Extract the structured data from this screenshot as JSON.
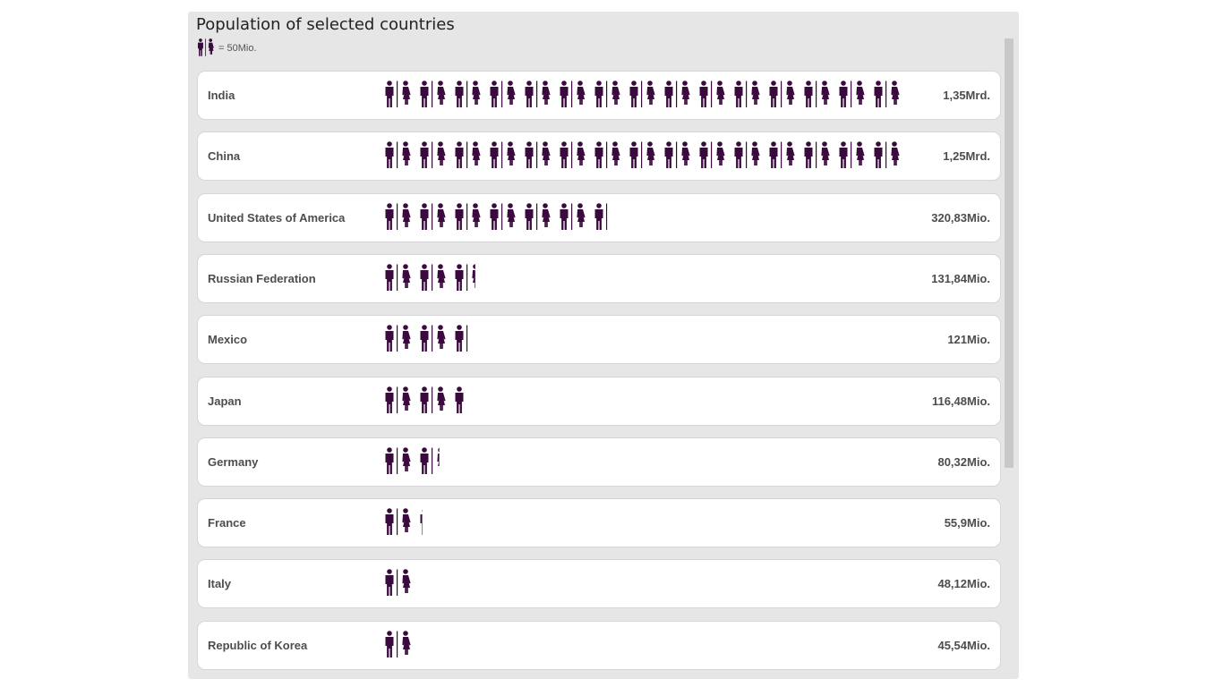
{
  "header": {
    "title": "Population of selected countries",
    "legend_text": "= 50Mio."
  },
  "colors": {
    "icon": "#3a0a3e",
    "panel_bg": "#e6e6e6",
    "row_bg": "#ffffff",
    "text": "#4d4d4d"
  },
  "chart_data": {
    "type": "pictogram",
    "title": "Population of selected countries",
    "unit_per_icon_pair": 50,
    "unit_label": "Mio.",
    "rows": [
      {
        "country": "India",
        "value": 1350,
        "label": "1,35Mrd."
      },
      {
        "country": "China",
        "value": 1250,
        "label": "1,25Mrd."
      },
      {
        "country": "United States of America",
        "value": 320.83,
        "label": "320,83Mio."
      },
      {
        "country": "Russian Federation",
        "value": 131.84,
        "label": "131,84Mio."
      },
      {
        "country": "Mexico",
        "value": 121,
        "label": "121Mio."
      },
      {
        "country": "Japan",
        "value": 116.48,
        "label": "116,48Mio."
      },
      {
        "country": "Germany",
        "value": 80.32,
        "label": "80,32Mio."
      },
      {
        "country": "France",
        "value": 55.9,
        "label": "55,9Mio."
      },
      {
        "country": "Italy",
        "value": 48.12,
        "label": "48,12Mio."
      },
      {
        "country": "Republic of Korea",
        "value": 45.54,
        "label": "45,54Mio."
      }
    ],
    "max_displayed_value": 750
  }
}
